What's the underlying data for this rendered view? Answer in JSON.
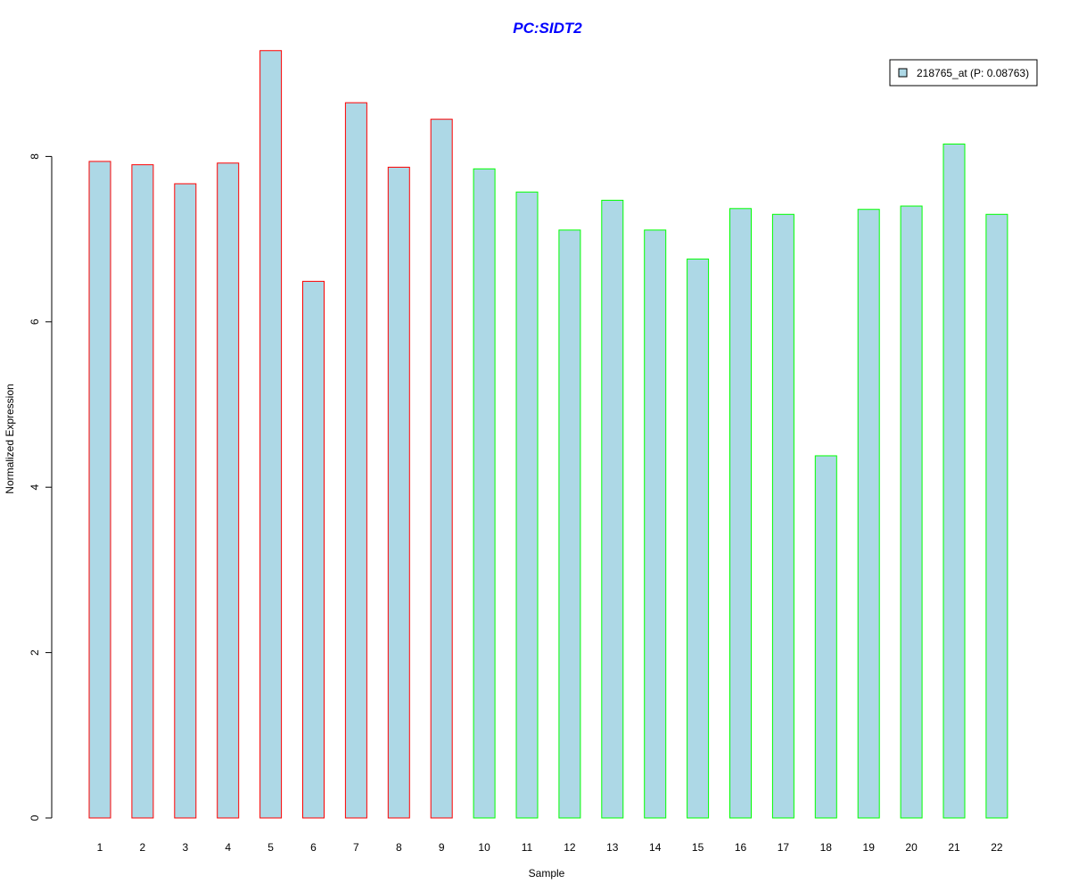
{
  "chart_data": {
    "type": "bar",
    "title": "PC:SIDT2",
    "xlabel": "Sample",
    "ylabel": "Normalized Expression",
    "categories": [
      "1",
      "2",
      "3",
      "4",
      "5",
      "6",
      "7",
      "8",
      "9",
      "10",
      "11",
      "12",
      "13",
      "14",
      "15",
      "16",
      "17",
      "18",
      "19",
      "20",
      "21",
      "22"
    ],
    "series": [
      {
        "name": "218765_at (P: 0.08763)",
        "values": [
          7.94,
          7.9,
          7.67,
          7.92,
          9.28,
          6.49,
          8.65,
          7.87,
          8.45,
          7.85,
          7.57,
          7.11,
          7.47,
          7.11,
          6.76,
          7.37,
          7.3,
          4.38,
          7.36,
          7.4,
          8.15,
          7.3
        ]
      }
    ],
    "group_border_colors": [
      "#ff0000",
      "#ff0000",
      "#ff0000",
      "#ff0000",
      "#ff0000",
      "#ff0000",
      "#ff0000",
      "#ff0000",
      "#ff0000",
      "#00ff00",
      "#00ff00",
      "#00ff00",
      "#00ff00",
      "#00ff00",
      "#00ff00",
      "#00ff00",
      "#00ff00",
      "#00ff00",
      "#00ff00",
      "#00ff00",
      "#00ff00",
      "#00ff00"
    ],
    "bar_fill": "#add8e6",
    "title_color": "#0000ff",
    "y_ticks": [
      "0",
      "2",
      "4",
      "6",
      "8"
    ],
    "ylim": [
      0,
      9.5
    ],
    "grid": false,
    "legend_position": "top-right"
  }
}
